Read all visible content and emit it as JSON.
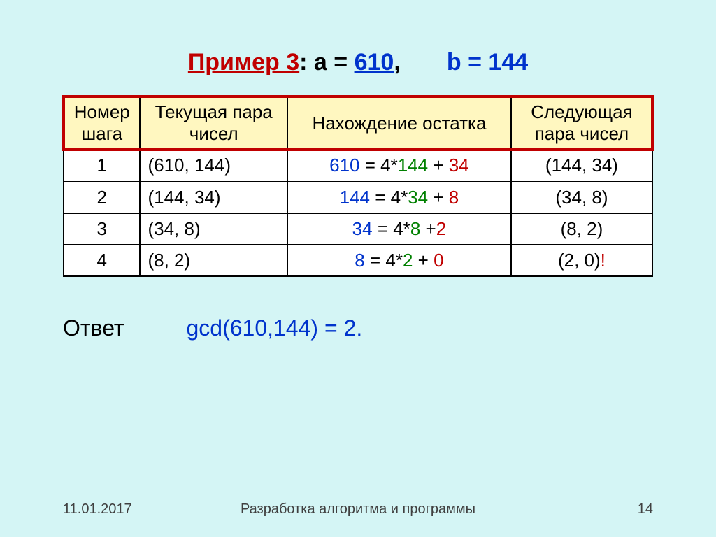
{
  "colors": {
    "background": "#d4f5f5",
    "header_bg": "#fff7c0",
    "header_outline": "#c00000",
    "cell_bg": "#ffffff",
    "border": "#000000",
    "blue": "#0033cc",
    "green": "#008000",
    "red": "#c00000",
    "black": "#000000",
    "footer_text": "#404040"
  },
  "typography": {
    "title_fontsize": 34,
    "cell_fontsize": 26,
    "answer_fontsize": 32,
    "footer_fontsize": 20,
    "font_family": "Arial"
  },
  "title": {
    "part1": "Пример 3",
    "part2": ": a = ",
    "part3": "610",
    "part4": ",",
    "spacer": " ",
    "part5": "b = 144"
  },
  "table": {
    "col_widths_pct": [
      13,
      25,
      38,
      24
    ],
    "headers": [
      "Номер шага",
      "Текущая пара чисел",
      "Нахождение остатка",
      "Следующая пара чисел"
    ],
    "rows": [
      {
        "step": "1",
        "pair": "(610, 144)",
        "calc": [
          {
            "t": "610",
            "c": "blue"
          },
          {
            "t": " = 4*",
            "c": "black"
          },
          {
            "t": "144",
            "c": "green"
          },
          {
            "t": " + ",
            "c": "black"
          },
          {
            "t": "34",
            "c": "red"
          }
        ],
        "next": [
          {
            "t": "(144, 34)",
            "c": "black"
          }
        ]
      },
      {
        "step": "2",
        "pair": "(144, 34)",
        "calc": [
          {
            "t": "144",
            "c": "blue"
          },
          {
            "t": " = 4*",
            "c": "black"
          },
          {
            "t": "34",
            "c": "green"
          },
          {
            "t": " + ",
            "c": "black"
          },
          {
            "t": "8",
            "c": "red"
          }
        ],
        "next": [
          {
            "t": "(34, 8)",
            "c": "black"
          }
        ]
      },
      {
        "step": "3",
        "pair": "(34, 8)",
        "calc": [
          {
            "t": "34",
            "c": "blue"
          },
          {
            "t": " = 4*",
            "c": "black"
          },
          {
            "t": "8",
            "c": "green"
          },
          {
            "t": " +",
            "c": "black"
          },
          {
            "t": "2",
            "c": "red"
          }
        ],
        "next": [
          {
            "t": "(8, 2)",
            "c": "black"
          }
        ]
      },
      {
        "step": "4",
        "pair": "(8, 2)",
        "calc": [
          {
            "t": "8",
            "c": "blue"
          },
          {
            "t": " = 4*",
            "c": "black"
          },
          {
            "t": "2",
            "c": "green"
          },
          {
            "t": " + ",
            "c": "black"
          },
          {
            "t": "0",
            "c": "red"
          }
        ],
        "next": [
          {
            "t": "(2, 0)",
            "c": "black"
          },
          {
            "t": "!",
            "c": "red"
          }
        ]
      }
    ]
  },
  "answer": {
    "label": "Ответ",
    "expr": "gcd(610,144) = 2."
  },
  "footer": {
    "date": "11.01.2017",
    "center": "Разработка алгоритма и программы",
    "page": "14"
  }
}
